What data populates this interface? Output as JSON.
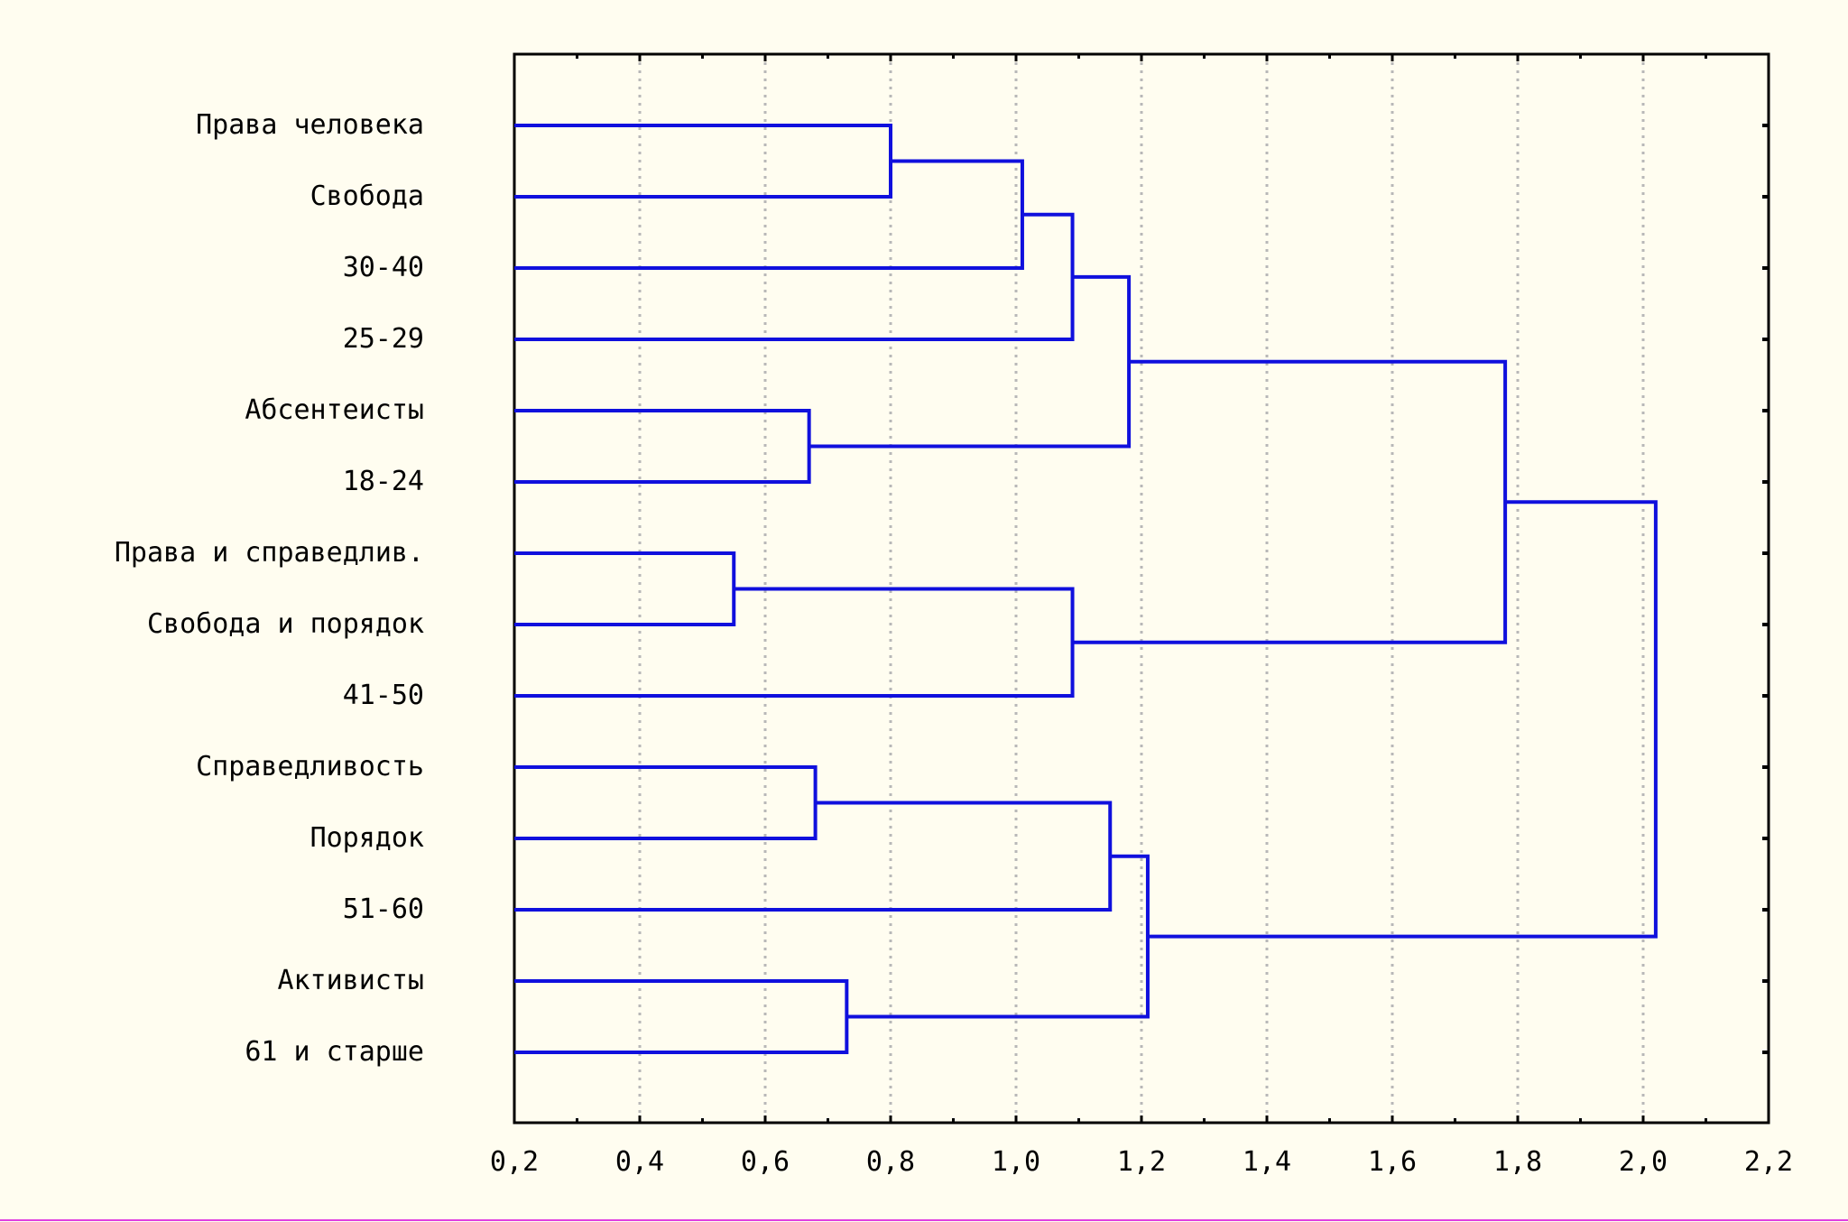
{
  "chart_data": {
    "type": "dendrogram",
    "orientation": "horizontal",
    "xlim": [
      0.2,
      2.2
    ],
    "xticks": [
      "0,2",
      "0,4",
      "0,6",
      "0,8",
      "1,0",
      "1,2",
      "1,4",
      "1,6",
      "1,8",
      "2,0",
      "2,2"
    ],
    "grid": "vertical dotted",
    "colors": {
      "line": "#1010dd",
      "background": "#fffdf0",
      "grid": "#b8b8b8"
    },
    "leaves": [
      "Права человека",
      "Свобода",
      "30-40",
      "25-29",
      "Абсентеисты",
      "18-24",
      "Права и справедлив.",
      "Свобода и порядок",
      "41-50",
      "Справедливость",
      "Порядок",
      "51-60",
      "Активисты",
      "61 и старше"
    ],
    "merges": [
      {
        "id": "c1",
        "a": "L0",
        "b": "L1",
        "height": 0.8
      },
      {
        "id": "c2",
        "a": "c1",
        "b": "L2",
        "height": 1.01
      },
      {
        "id": "c3",
        "a": "c2",
        "b": "L3",
        "height": 1.09
      },
      {
        "id": "c4",
        "a": "L4",
        "b": "L5",
        "height": 0.67
      },
      {
        "id": "c5",
        "a": "c3",
        "b": "c4",
        "height": 1.18
      },
      {
        "id": "c6",
        "a": "L6",
        "b": "L7",
        "height": 0.55
      },
      {
        "id": "c7",
        "a": "c6",
        "b": "L8",
        "height": 1.09
      },
      {
        "id": "c8",
        "a": "c5",
        "b": "c7",
        "height": 1.78
      },
      {
        "id": "c9",
        "a": "L9",
        "b": "L10",
        "height": 0.68
      },
      {
        "id": "c10",
        "a": "c9",
        "b": "L11",
        "height": 1.15
      },
      {
        "id": "c11",
        "a": "L12",
        "b": "L13",
        "height": 0.73
      },
      {
        "id": "c12",
        "a": "c10",
        "b": "c11",
        "height": 1.21
      },
      {
        "id": "c13",
        "a": "c8",
        "b": "c12",
        "height": 2.02
      }
    ]
  }
}
